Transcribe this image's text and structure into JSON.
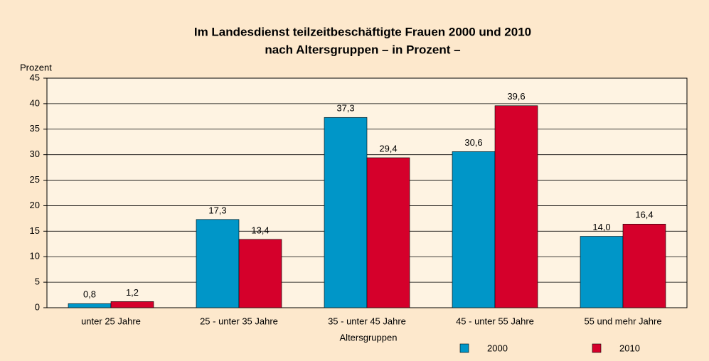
{
  "chart_data": {
    "type": "bar",
    "title": [
      "Im Landesdienst teilzeitbeschäftigte Frauen 2000 und 2010",
      "nach Altersgruppen – in Prozent –"
    ],
    "y_label": "Prozent",
    "x_label": "Altersgruppen",
    "categories": [
      "unter 25 Jahre",
      "25 - unter 35 Jahre",
      "35 - unter 45 Jahre",
      "45 - unter 55 Jahre",
      "55 und mehr Jahre"
    ],
    "series": [
      {
        "name": "2000",
        "color": "#0096c8",
        "values": [
          0.8,
          17.3,
          37.3,
          30.6,
          14.0
        ],
        "value_labels": [
          "0,8",
          "17,3",
          "37,3",
          "30,6",
          "14,0"
        ]
      },
      {
        "name": "2010",
        "color": "#d5002b",
        "values": [
          1.2,
          13.4,
          29.4,
          39.6,
          16.4
        ],
        "value_labels": [
          "1,2",
          "13,4",
          "29,4",
          "39,6",
          "16,4"
        ]
      }
    ],
    "ylim": [
      0,
      45
    ],
    "yticks": [
      0,
      5,
      10,
      15,
      20,
      25,
      30,
      35,
      40,
      45
    ],
    "grid": true
  }
}
